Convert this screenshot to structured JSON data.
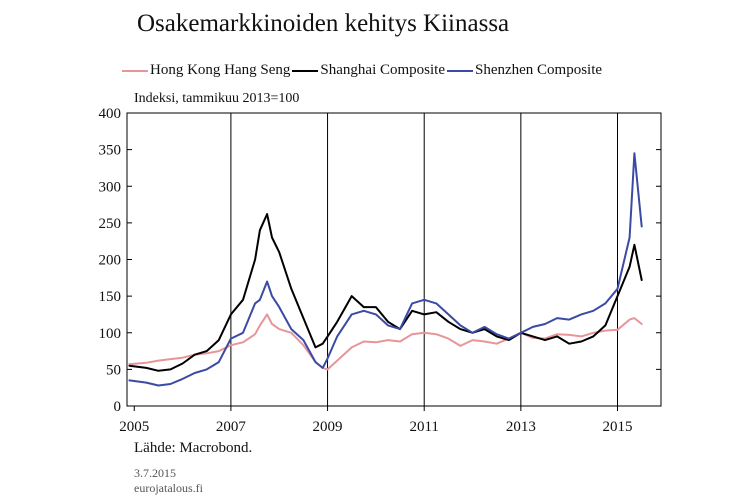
{
  "chart_data": {
    "type": "line",
    "title": "Osakemarkkinoiden kehitys Kiinassa",
    "ylabel": "Indeksi, tammikuu 2013=100",
    "source": "Lähde: Macrobond.",
    "date": "3.7.2015",
    "site": "eurojatalous.fi",
    "xlim": [
      2004.85,
      2015.9
    ],
    "ylim": [
      0,
      400
    ],
    "yticks": [
      0,
      50,
      100,
      150,
      200,
      250,
      300,
      350,
      400
    ],
    "xticks": [
      2005,
      2007,
      2009,
      2011,
      2013,
      2015
    ],
    "xgrid": [
      2007,
      2009,
      2011,
      2013,
      2015
    ],
    "series": [
      {
        "name": "Hong Kong Hang Seng",
        "color": "#e8959a",
        "x": [
          2004.9,
          2005.25,
          2005.5,
          2005.75,
          2006.0,
          2006.25,
          2006.5,
          2006.75,
          2007.0,
          2007.25,
          2007.5,
          2007.6,
          2007.75,
          2007.85,
          2008.0,
          2008.25,
          2008.5,
          2008.75,
          2008.9,
          2009.0,
          2009.2,
          2009.5,
          2009.75,
          2010.0,
          2010.25,
          2010.5,
          2010.75,
          2011.0,
          2011.25,
          2011.5,
          2011.75,
          2012.0,
          2012.25,
          2012.5,
          2012.75,
          2013.0,
          2013.25,
          2013.5,
          2013.75,
          2014.0,
          2014.25,
          2014.5,
          2014.75,
          2015.0,
          2015.25,
          2015.35,
          2015.5
        ],
        "values": [
          57,
          59,
          62,
          64,
          66,
          70,
          72,
          75,
          83,
          87,
          98,
          110,
          125,
          112,
          105,
          100,
          83,
          60,
          52,
          50,
          62,
          80,
          88,
          87,
          90,
          88,
          98,
          100,
          98,
          92,
          82,
          90,
          88,
          85,
          92,
          100,
          93,
          92,
          98,
          97,
          95,
          100,
          103,
          104,
          118,
          120,
          112
        ]
      },
      {
        "name": "Shanghai Composite",
        "color": "#000000",
        "x": [
          2004.9,
          2005.25,
          2005.5,
          2005.75,
          2006.0,
          2006.25,
          2006.5,
          2006.75,
          2007.0,
          2007.25,
          2007.5,
          2007.6,
          2007.75,
          2007.85,
          2008.0,
          2008.25,
          2008.5,
          2008.75,
          2008.9,
          2009.0,
          2009.2,
          2009.5,
          2009.75,
          2010.0,
          2010.25,
          2010.5,
          2010.75,
          2011.0,
          2011.25,
          2011.5,
          2011.75,
          2012.0,
          2012.25,
          2012.5,
          2012.75,
          2013.0,
          2013.25,
          2013.5,
          2013.75,
          2014.0,
          2014.25,
          2014.5,
          2014.75,
          2015.0,
          2015.25,
          2015.35,
          2015.5
        ],
        "values": [
          55,
          52,
          48,
          50,
          58,
          70,
          75,
          90,
          125,
          145,
          200,
          240,
          262,
          230,
          210,
          160,
          120,
          80,
          85,
          95,
          115,
          150,
          135,
          135,
          115,
          105,
          130,
          125,
          128,
          115,
          105,
          100,
          105,
          95,
          90,
          100,
          95,
          90,
          95,
          85,
          88,
          95,
          110,
          150,
          190,
          220,
          172
        ]
      },
      {
        "name": "Shenzhen Composite",
        "color": "#3a4aa5",
        "x": [
          2004.9,
          2005.25,
          2005.5,
          2005.75,
          2006.0,
          2006.25,
          2006.5,
          2006.75,
          2007.0,
          2007.25,
          2007.5,
          2007.6,
          2007.75,
          2007.85,
          2008.0,
          2008.25,
          2008.5,
          2008.75,
          2008.9,
          2009.0,
          2009.2,
          2009.5,
          2009.75,
          2010.0,
          2010.25,
          2010.5,
          2010.75,
          2011.0,
          2011.25,
          2011.5,
          2011.75,
          2012.0,
          2012.25,
          2012.5,
          2012.75,
          2013.0,
          2013.25,
          2013.5,
          2013.75,
          2014.0,
          2014.25,
          2014.5,
          2014.75,
          2015.0,
          2015.25,
          2015.35,
          2015.5
        ],
        "values": [
          35,
          32,
          28,
          30,
          37,
          45,
          50,
          60,
          92,
          100,
          140,
          145,
          170,
          150,
          135,
          105,
          90,
          60,
          52,
          65,
          95,
          125,
          130,
          125,
          110,
          105,
          140,
          145,
          140,
          125,
          110,
          100,
          108,
          98,
          92,
          100,
          108,
          112,
          120,
          118,
          125,
          130,
          140,
          160,
          230,
          345,
          245
        ]
      }
    ]
  }
}
